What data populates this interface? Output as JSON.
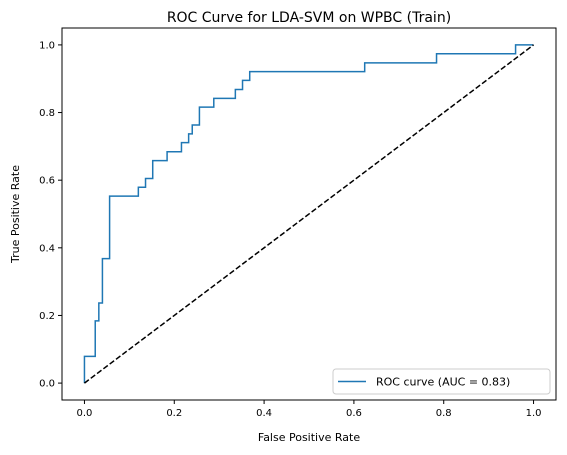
{
  "chart_data": {
    "type": "line",
    "title": "ROC Curve for LDA-SVM on WPBC (Train)",
    "xlabel": "False Positive Rate",
    "ylabel": "True Positive Rate",
    "xlim": [
      -0.05,
      1.05
    ],
    "ylim": [
      -0.05,
      1.05
    ],
    "x_ticks": [
      "0.0",
      "0.2",
      "0.4",
      "0.6",
      "0.8",
      "1.0"
    ],
    "y_ticks": [
      "0.0",
      "0.2",
      "0.4",
      "0.6",
      "0.8",
      "1.0"
    ],
    "grid": false,
    "legend_position": "lower-right",
    "series": [
      {
        "name": "ROC curve (AUC = 0.83)",
        "color": "#1f77b4",
        "style": "solid",
        "x": [
          0.0,
          0.0,
          0.024,
          0.024,
          0.032,
          0.032,
          0.04,
          0.04,
          0.056,
          0.056,
          0.12,
          0.12,
          0.136,
          0.136,
          0.152,
          0.152,
          0.184,
          0.184,
          0.216,
          0.216,
          0.232,
          0.232,
          0.24,
          0.24,
          0.256,
          0.256,
          0.288,
          0.288,
          0.336,
          0.336,
          0.352,
          0.352,
          0.368,
          0.368,
          0.624,
          0.624,
          0.784,
          0.784,
          0.96,
          0.96,
          1.0
        ],
        "y": [
          0.0,
          0.079,
          0.079,
          0.184,
          0.184,
          0.237,
          0.237,
          0.368,
          0.368,
          0.553,
          0.553,
          0.579,
          0.579,
          0.605,
          0.605,
          0.658,
          0.658,
          0.684,
          0.684,
          0.711,
          0.711,
          0.737,
          0.737,
          0.763,
          0.763,
          0.816,
          0.816,
          0.842,
          0.842,
          0.868,
          0.868,
          0.895,
          0.895,
          0.921,
          0.921,
          0.947,
          0.947,
          0.974,
          0.974,
          1.0,
          1.0
        ]
      },
      {
        "name": "",
        "color": "#000000",
        "style": "dashed",
        "x": [
          0,
          1
        ],
        "y": [
          0,
          1
        ]
      }
    ]
  }
}
